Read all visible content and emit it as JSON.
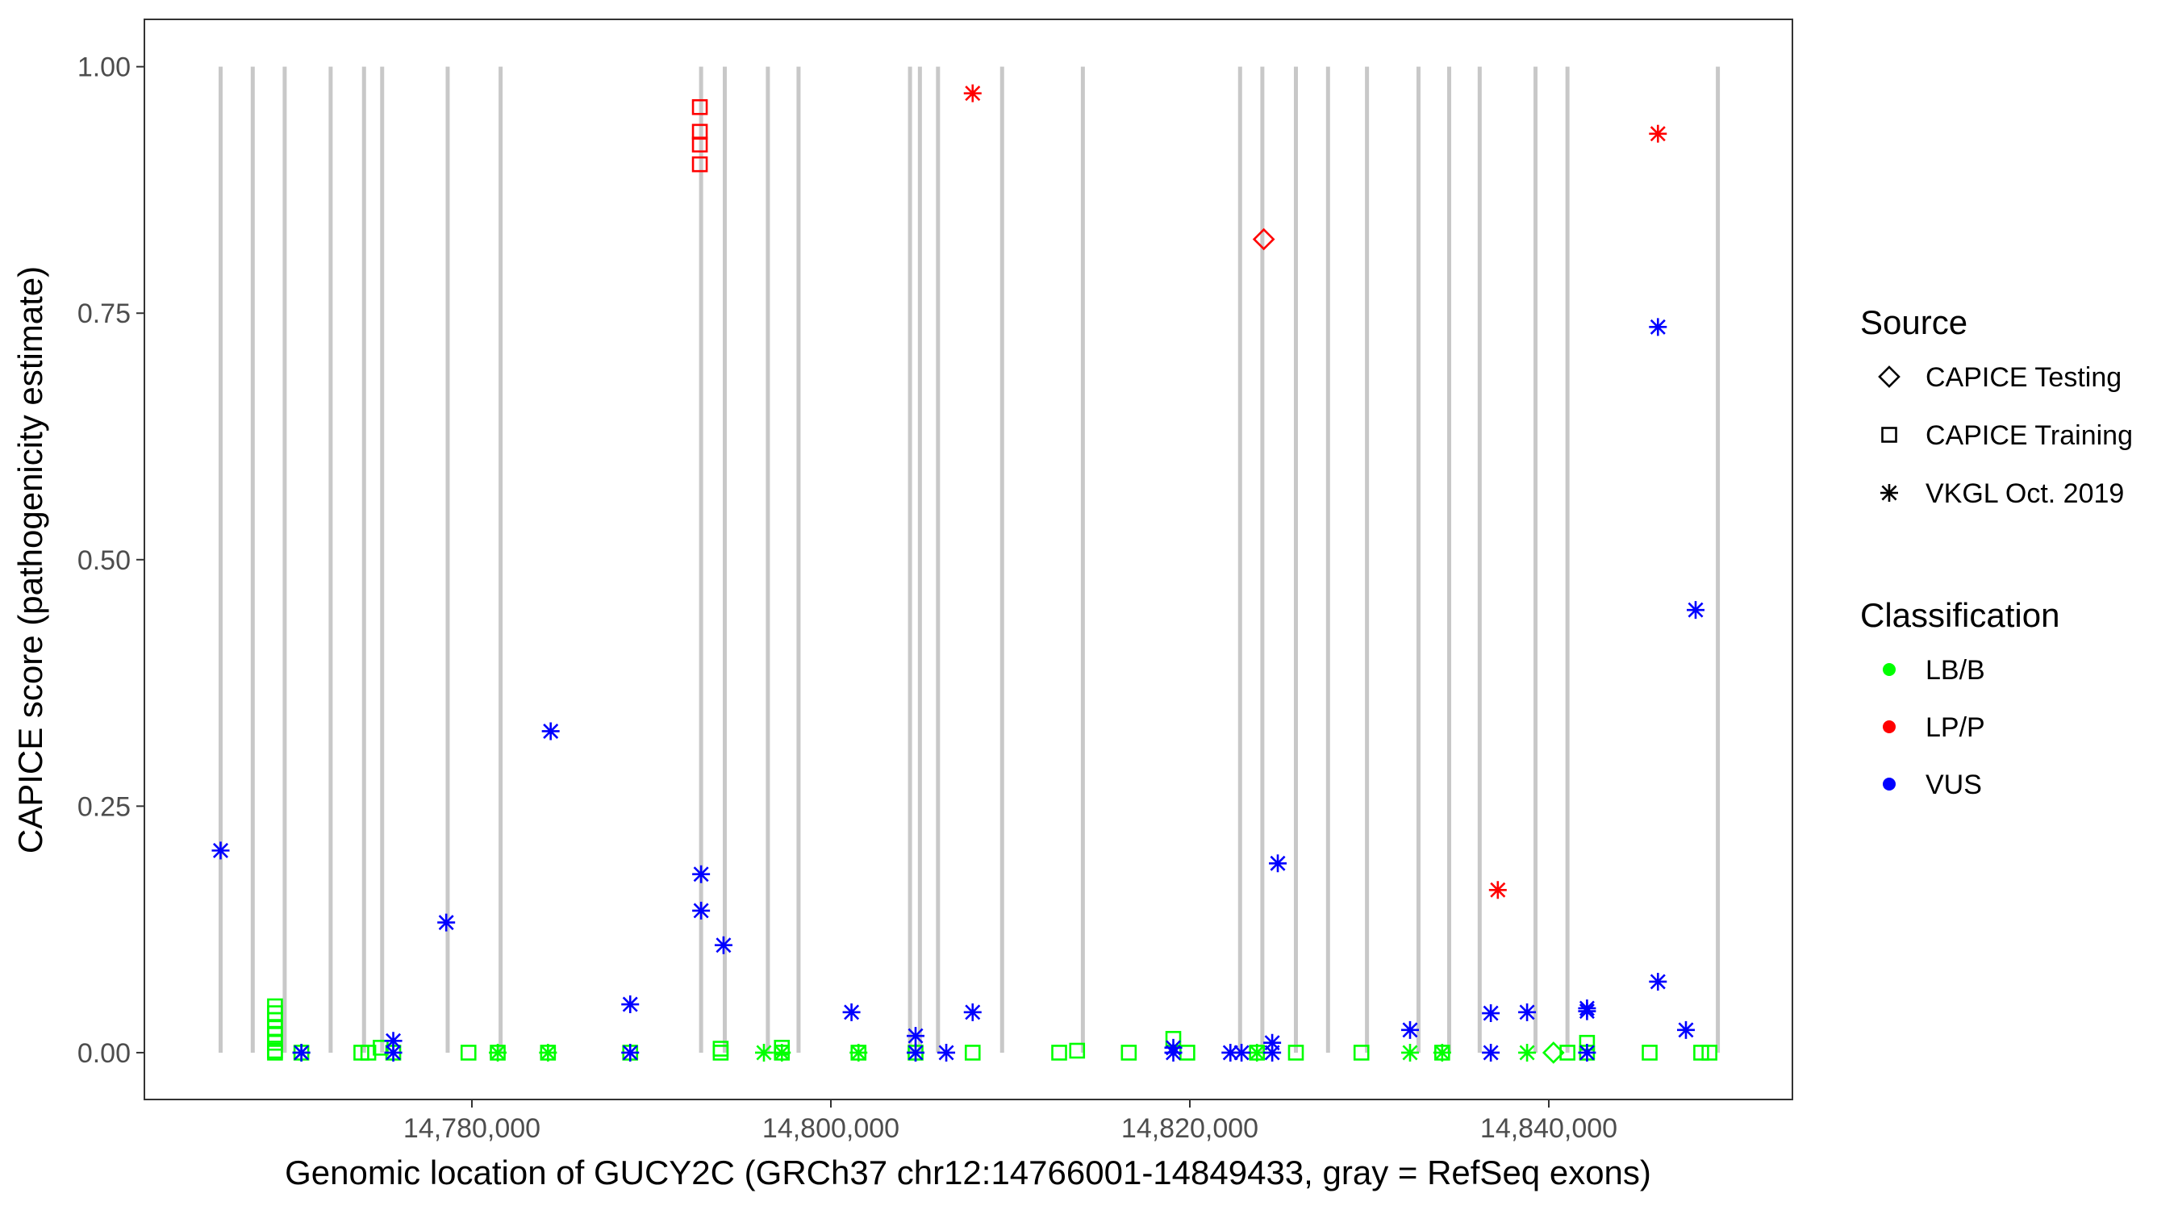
{
  "chart_data": {
    "type": "scatter",
    "title": "",
    "xlabel": "Genomic location of GUCY2C (GRCh37 chr12:14766001-14849433, gray = RefSeq exons)",
    "ylabel": "CAPICE score (pathogenicity estimate)",
    "xlim": [
      14761753,
      14853573
    ],
    "ylim": [
      -0.0475,
      1.048
    ],
    "x_ticks": [
      14780000,
      14800000,
      14820000,
      14840000
    ],
    "x_tick_labels": [
      "14,780,000",
      "14,800,000",
      "14,820,000",
      "14,840,000"
    ],
    "y_ticks": [
      0,
      0.25,
      0.5,
      0.75,
      1.0
    ],
    "y_tick_labels": [
      "0.00",
      "0.25",
      "0.50",
      "0.75",
      "1.00"
    ],
    "grid": false,
    "legend_placement": "right",
    "exons_color": "#c8c8c8",
    "exon_positions": [
      14766000,
      14767790,
      14769570,
      14772130,
      14773990,
      14775000,
      14778650,
      14781600,
      14792770,
      14794090,
      14796490,
      14798200,
      14804410,
      14804960,
      14805970,
      14809540,
      14814040,
      14822800,
      14824040,
      14825910,
      14827700,
      14829870,
      14832740,
      14834450,
      14836150,
      14839260,
      14841040,
      14849420
    ],
    "legend": {
      "source": {
        "title": "Source",
        "items": [
          {
            "label": "CAPICE Testing",
            "shape": "diamond"
          },
          {
            "label": "CAPICE Training",
            "shape": "square"
          },
          {
            "label": "VKGL Oct. 2019",
            "shape": "asterisk"
          }
        ]
      },
      "classification": {
        "title": "Classification",
        "items": [
          {
            "label": "LB/B",
            "color": "#00ff00"
          },
          {
            "label": "LP/P",
            "color": "#ff0000"
          },
          {
            "label": "VUS",
            "color": "#0000ff"
          }
        ]
      }
    },
    "series": [
      {
        "source": "CAPICE Training",
        "classification": "LB/B",
        "points": [
          [
            14769030,
            0.047
          ],
          [
            14769030,
            0.04
          ],
          [
            14769030,
            0.033
          ],
          [
            14769030,
            0.025
          ],
          [
            14769030,
            0.018
          ],
          [
            14769030,
            0.01
          ],
          [
            14769030,
            0.002
          ],
          [
            14769030,
            0
          ],
          [
            14770500,
            0
          ],
          [
            14773840,
            0
          ],
          [
            14774230,
            0
          ],
          [
            14774920,
            0.005
          ],
          [
            14775620,
            0
          ],
          [
            14779810,
            0
          ],
          [
            14781440,
            0
          ],
          [
            14784240,
            0
          ],
          [
            14788820,
            0
          ],
          [
            14793860,
            0
          ],
          [
            14793860,
            0.004
          ],
          [
            14797270,
            0
          ],
          [
            14797270,
            0.005
          ],
          [
            14801540,
            0
          ],
          [
            14804720,
            0
          ],
          [
            14807900,
            0
          ],
          [
            14812720,
            0
          ],
          [
            14813720,
            0.002
          ],
          [
            14816600,
            0
          ],
          [
            14819080,
            0.014
          ],
          [
            14819860,
            0
          ],
          [
            14823740,
            0
          ],
          [
            14825910,
            0
          ],
          [
            14829560,
            0
          ],
          [
            14834060,
            0
          ],
          [
            14841040,
            0
          ],
          [
            14842130,
            0.01
          ],
          [
            14842130,
            0
          ],
          [
            14845620,
            0
          ],
          [
            14848490,
            0
          ],
          [
            14848950,
            0
          ]
        ]
      },
      {
        "source": "CAPICE Testing",
        "classification": "LB/B",
        "points": [
          [
            14840260,
            0
          ]
        ]
      },
      {
        "source": "VKGL Oct. 2019",
        "classification": "LB/B",
        "points": [
          [
            14770500,
            0
          ],
          [
            14781440,
            0
          ],
          [
            14784240,
            0
          ],
          [
            14796270,
            0
          ],
          [
            14797270,
            0
          ],
          [
            14801540,
            0
          ],
          [
            14804720,
            0
          ],
          [
            14823740,
            0
          ],
          [
            14832270,
            0
          ],
          [
            14834060,
            0
          ],
          [
            14838790,
            0
          ]
        ]
      },
      {
        "source": "CAPICE Training",
        "classification": "LP/P",
        "points": [
          [
            14792700,
            0.959
          ],
          [
            14792700,
            0.934
          ],
          [
            14792700,
            0.921
          ],
          [
            14792700,
            0.901
          ]
        ]
      },
      {
        "source": "CAPICE Testing",
        "classification": "LP/P",
        "points": [
          [
            14824120,
            0.825
          ]
        ]
      },
      {
        "source": "VKGL Oct. 2019",
        "classification": "LP/P",
        "points": [
          [
            14807900,
            0.973
          ],
          [
            14837160,
            0.165
          ],
          [
            14846080,
            0.932
          ]
        ]
      },
      {
        "source": "VKGL Oct. 2019",
        "classification": "VUS",
        "points": [
          [
            14766000,
            0.205
          ],
          [
            14770500,
            0
          ],
          [
            14775620,
            0
          ],
          [
            14775620,
            0.012
          ],
          [
            14778570,
            0.132
          ],
          [
            14784390,
            0.326
          ],
          [
            14788820,
            0.049
          ],
          [
            14788820,
            0
          ],
          [
            14792770,
            0.181
          ],
          [
            14792770,
            0.144
          ],
          [
            14794020,
            0.109
          ],
          [
            14801150,
            0.041
          ],
          [
            14804720,
            0.017
          ],
          [
            14804720,
            0
          ],
          [
            14806430,
            0
          ],
          [
            14807900,
            0.041
          ],
          [
            14819080,
            0
          ],
          [
            14819080,
            0.005
          ],
          [
            14822260,
            0
          ],
          [
            14822880,
            0
          ],
          [
            14824590,
            0
          ],
          [
            14824590,
            0.01
          ],
          [
            14824900,
            0.192
          ],
          [
            14832270,
            0.023
          ],
          [
            14836770,
            0.04
          ],
          [
            14836770,
            0
          ],
          [
            14838790,
            0.041
          ],
          [
            14842130,
            0.045
          ],
          [
            14842130,
            0.042
          ],
          [
            14842130,
            0
          ],
          [
            14846080,
            0.736
          ],
          [
            14846080,
            0.072
          ],
          [
            14847640,
            0.023
          ],
          [
            14848180,
            0.449
          ]
        ]
      }
    ]
  }
}
